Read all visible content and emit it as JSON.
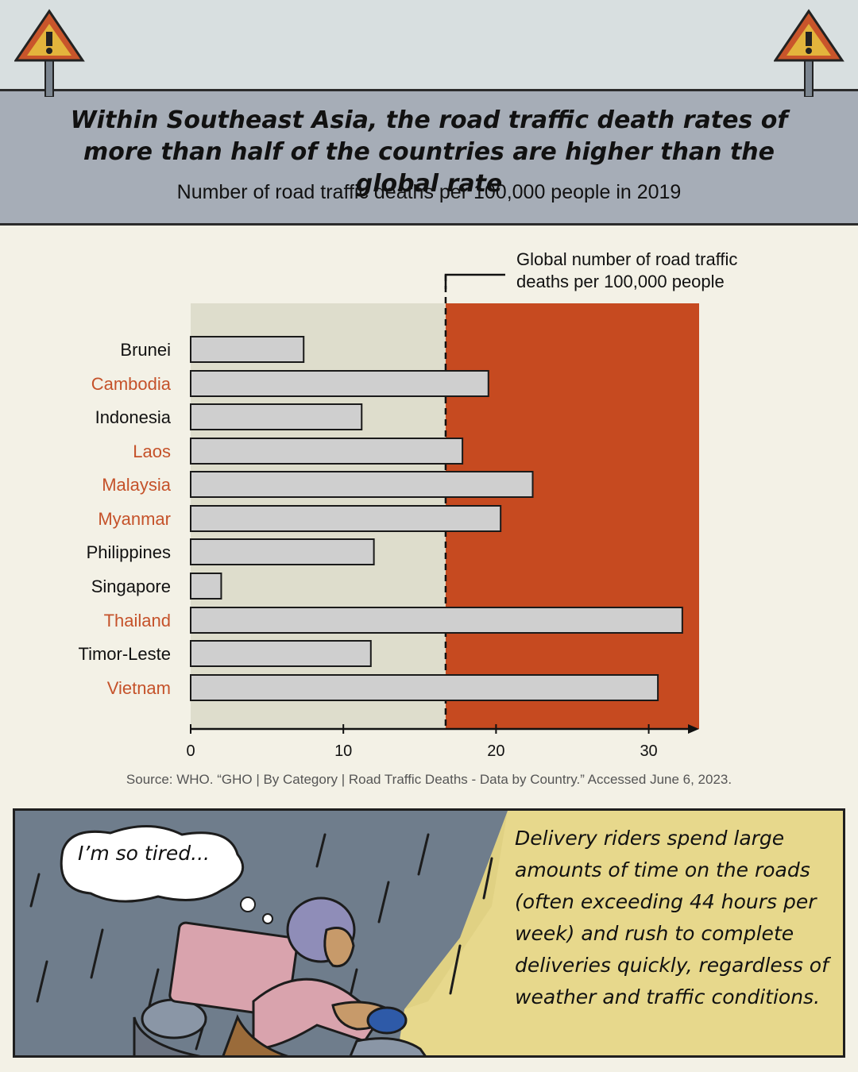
{
  "header": {
    "title": "Within Southeast Asia, the road traffic death rates of more than half of the countries are higher than the global rate",
    "subtitle": "Number of road traffic deaths per 100,000 people in 2019"
  },
  "chart_data": {
    "type": "bar",
    "orientation": "horizontal",
    "title": "Within Southeast Asia, the road traffic death rates of more than half of the countries are higher than the global rate",
    "subtitle": "Number of road traffic deaths per 100,000 people in 2019",
    "categories": [
      "Brunei",
      "Cambodia",
      "Indonesia",
      "Laos",
      "Malaysia",
      "Myanmar",
      "Philippines",
      "Singapore",
      "Thailand",
      "Timor-Leste",
      "Vietnam"
    ],
    "values": [
      7.4,
      19.5,
      11.2,
      17.8,
      22.4,
      20.3,
      12.0,
      2.0,
      32.2,
      11.8,
      30.6
    ],
    "above_global": [
      false,
      true,
      false,
      true,
      true,
      true,
      false,
      false,
      true,
      false,
      true
    ],
    "reference_line": {
      "value": 16.7,
      "label": "Global number of road traffic deaths per 100,000 people"
    },
    "x_ticks": [
      0,
      10,
      20,
      30
    ],
    "xlim": [
      0,
      33.3
    ],
    "grid": false,
    "colors": {
      "bar": "#cfcfcf",
      "below_bg": "#deddcc",
      "above_bg": "#c64a20",
      "label_above": "#c5522a",
      "label_below": "#111111"
    }
  },
  "source": "Source: WHO. “GHO | By Category | Road Traffic Deaths - Data by Country.” Accessed June 6, 2023.",
  "comic": {
    "thought": "I’m so tired...",
    "caption": "Delivery riders spend large amounts of time on the roads (often exceeding 44 hours per week) and rush to complete deliveries quickly, regardless of weather and traffic conditions.",
    "icons": [
      "warning-sign-icon",
      "delivery-rider-illustration",
      "thought-bubble-icon"
    ]
  }
}
